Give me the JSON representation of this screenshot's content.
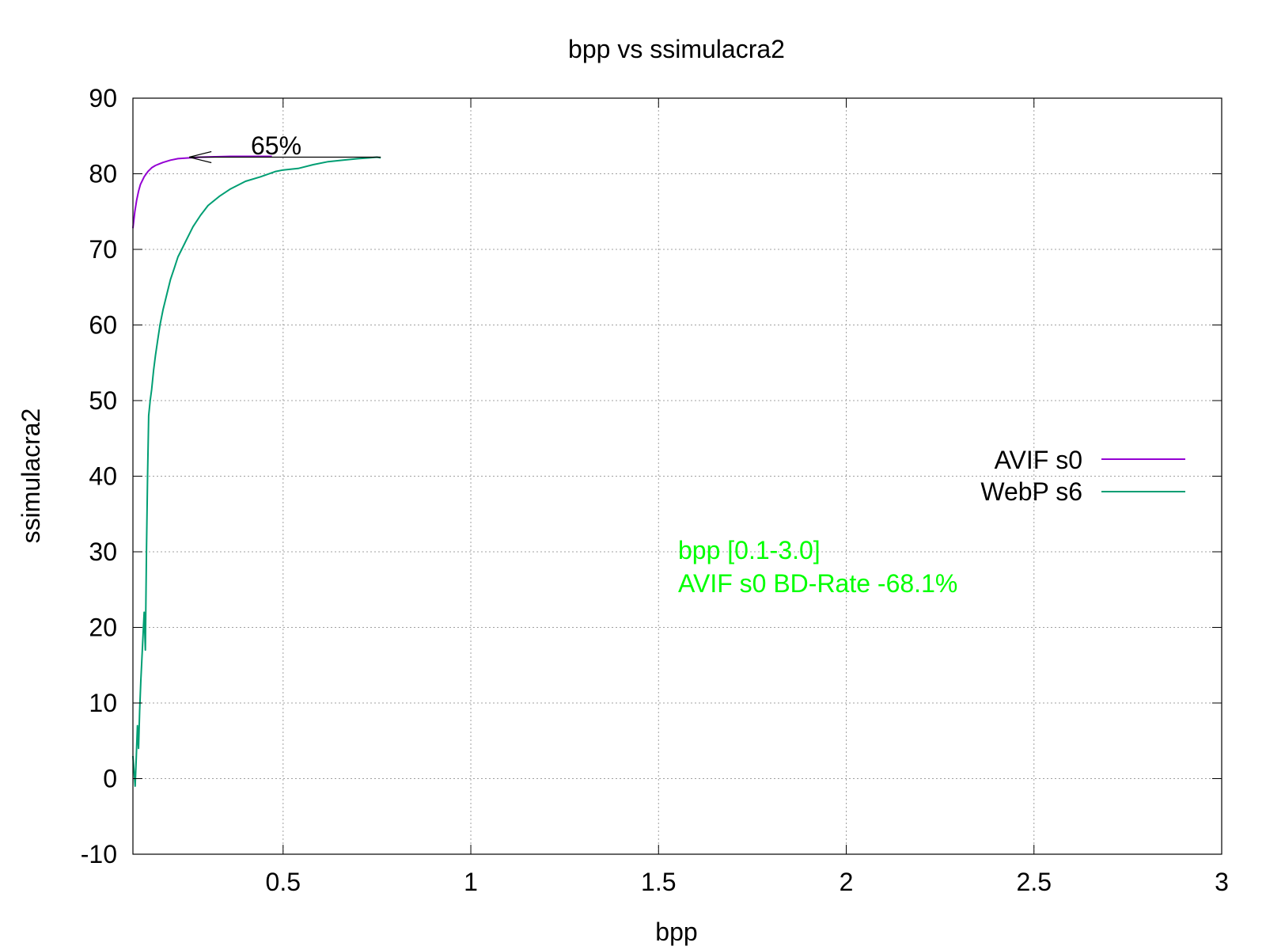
{
  "chart_data": {
    "type": "line",
    "title": "bpp vs ssimulacra2",
    "xlabel": "bpp",
    "ylabel": "ssimulacra2",
    "xlim": [
      0.1,
      3.0
    ],
    "ylim": [
      -10,
      90
    ],
    "xticks": [
      0.5,
      1,
      1.5,
      2,
      2.5,
      3
    ],
    "xtick_labels": [
      "0.5",
      "1",
      "1.5",
      "2",
      "2.5",
      "3"
    ],
    "yticks": [
      -10,
      0,
      10,
      20,
      30,
      40,
      50,
      60,
      70,
      80,
      90
    ],
    "ytick_labels": [
      "-10",
      "0",
      "10",
      "20",
      "30",
      "40",
      "50",
      "60",
      "70",
      "80",
      "90"
    ],
    "grid": true,
    "legend_position": "right",
    "series": [
      {
        "name": "AVIF s0",
        "color": "#9400d3",
        "x": [
          0.1,
          0.105,
          0.11,
          0.115,
          0.12,
          0.13,
          0.14,
          0.15,
          0.16,
          0.17,
          0.18,
          0.2,
          0.22,
          0.25,
          0.28,
          0.32,
          0.36,
          0.4,
          0.44,
          0.47
        ],
        "y": [
          72.8,
          75.0,
          76.5,
          77.7,
          78.6,
          79.6,
          80.3,
          80.8,
          81.1,
          81.3,
          81.5,
          81.8,
          82.0,
          82.1,
          82.2,
          82.25,
          82.3,
          82.3,
          82.3,
          82.3
        ]
      },
      {
        "name": "WebP s6",
        "color": "#009e73",
        "x": [
          0.1,
          0.103,
          0.106,
          0.109,
          0.112,
          0.115,
          0.118,
          0.121,
          0.124,
          0.127,
          0.13,
          0.133,
          0.136,
          0.139,
          0.142,
          0.146,
          0.15,
          0.155,
          0.16,
          0.166,
          0.172,
          0.18,
          0.19,
          0.2,
          0.21,
          0.22,
          0.23,
          0.24,
          0.26,
          0.28,
          0.3,
          0.33,
          0.36,
          0.4,
          0.44,
          0.48,
          0.5,
          0.54,
          0.58,
          0.62,
          0.66,
          0.7,
          0.73,
          0.75,
          0.76
        ],
        "y": [
          3.0,
          1.0,
          -1.0,
          3.0,
          7.0,
          4.0,
          9.0,
          13.0,
          16.0,
          19.0,
          22.0,
          17.0,
          30.0,
          40.0,
          48.0,
          50.0,
          51.5,
          54.0,
          56.0,
          58.0,
          60.0,
          62.0,
          64.0,
          66.0,
          67.5,
          69.0,
          70.0,
          71.0,
          73.0,
          74.5,
          75.8,
          77.0,
          78.0,
          79.0,
          79.6,
          80.3,
          80.5,
          80.7,
          81.2,
          81.6,
          81.8,
          82.0,
          82.1,
          82.2,
          82.1
        ]
      }
    ],
    "annotations": {
      "arrow_label": "65%",
      "arrow_from": [
        0.76,
        82.2
      ],
      "arrow_to": [
        0.25,
        82.2
      ],
      "bd_line1": "bpp [0.1-3.0]",
      "bd_line2": "AVIF s0 BD-Rate -68.1%",
      "bd_color": "#00ff00"
    }
  }
}
